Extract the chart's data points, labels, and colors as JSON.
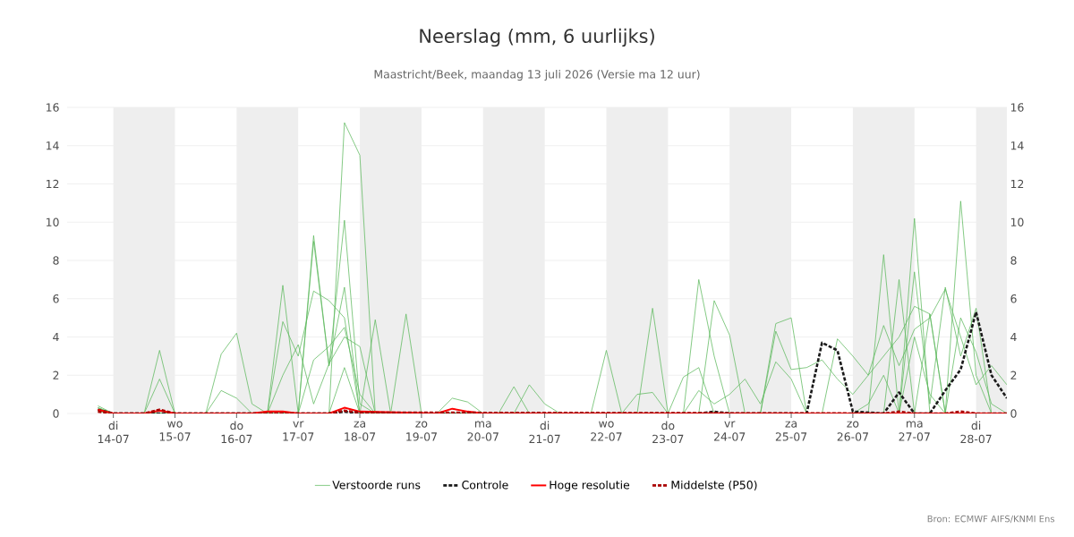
{
  "chart_data": {
    "type": "line",
    "title": "Neerslag (mm, 6 uurlijks)",
    "subtitle": "Maastricht/Beek, maandag 13 juli 2026 (Versie ma 12 uur)",
    "annotations": [
      "Bron: ECMWF AIFS/KNMI Ens"
    ],
    "xlim": [
      "2026-07-13T06:00",
      "2026-07-28T12:00"
    ],
    "xticks": [
      {
        "value": "2026-07-14",
        "label": "di 14-07"
      },
      {
        "value": "2026-07-15",
        "label": "wo 15-07"
      },
      {
        "value": "2026-07-16",
        "label": "do 16-07"
      },
      {
        "value": "2026-07-17",
        "label": "vr 17-07"
      },
      {
        "value": "2026-07-18",
        "label": "za 18-07"
      },
      {
        "value": "2026-07-19",
        "label": "zo 19-07"
      },
      {
        "value": "2026-07-20",
        "label": "ma 20-07"
      },
      {
        "value": "2026-07-21",
        "label": "di 21-07"
      },
      {
        "value": "2026-07-22",
        "label": "wo 22-07"
      },
      {
        "value": "2026-07-23",
        "label": "do 23-07"
      },
      {
        "value": "2026-07-24",
        "label": "vr 24-07"
      },
      {
        "value": "2026-07-25",
        "label": "za 25-07"
      },
      {
        "value": "2026-07-26",
        "label": "zo 26-07"
      },
      {
        "value": "2026-07-27",
        "label": "ma 27-07"
      },
      {
        "value": "2026-07-28",
        "label": "di 28-07"
      }
    ],
    "ylim": [
      0,
      16
    ],
    "yticks": [
      0,
      2,
      4,
      6,
      8,
      10,
      12,
      14,
      16
    ],
    "y2lim": [
      0,
      16
    ],
    "y2ticks": [
      0,
      2,
      4,
      6,
      8,
      10,
      12,
      14,
      16
    ],
    "grid": "y",
    "legend": "bottom",
    "bands": [
      {
        "axis": "x",
        "from": "2026-07-14",
        "to": "2026-07-15",
        "color": "#eeeeee"
      },
      {
        "axis": "x",
        "from": "2026-07-16",
        "to": "2026-07-17",
        "color": "#eeeeee"
      },
      {
        "axis": "x",
        "from": "2026-07-18",
        "to": "2026-07-19",
        "color": "#eeeeee"
      },
      {
        "axis": "x",
        "from": "2026-07-20",
        "to": "2026-07-21",
        "color": "#eeeeee"
      },
      {
        "axis": "x",
        "from": "2026-07-22",
        "to": "2026-07-23",
        "color": "#eeeeee"
      },
      {
        "axis": "x",
        "from": "2026-07-24",
        "to": "2026-07-25",
        "color": "#eeeeee"
      },
      {
        "axis": "x",
        "from": "2026-07-26",
        "to": "2026-07-27",
        "color": "#eeeeee"
      },
      {
        "axis": "x",
        "from": "2026-07-28",
        "to": "2026-07-28T12:00",
        "color": "#eeeeee"
      }
    ],
    "series": [
      {
        "color": "#5cb85c",
        "x": [
          "2026-07-13T18:00",
          "2026-07-14T00:00",
          "2026-07-14T12:00",
          "2026-07-14T18:00",
          "2026-07-15T00:00",
          "2026-07-17T00:00",
          "2026-07-17T06:00",
          "2026-07-17T12:00",
          "2026-07-17T18:00",
          "2026-07-18T00:00",
          "2026-07-18T06:00",
          "2026-07-18T12:00",
          "2026-07-18T18:00",
          "2026-07-19T00:00",
          "2026-07-24T12:00",
          "2026-07-24T18:00",
          "2026-07-25T00:00",
          "2026-07-25T06:00",
          "2026-07-27T12:00",
          "2026-07-27T18:00",
          "2026-07-28T00:00",
          "2026-07-28T06:00",
          "2026-07-28T12:00"
        ],
        "values": [
          0.4,
          0,
          0,
          1.8,
          0,
          0,
          9.3,
          2.5,
          10.1,
          0.5,
          0,
          0,
          5.2,
          0,
          0,
          4.7,
          5.0,
          0,
          0,
          11.1,
          2.0,
          0,
          0
        ]
      },
      {
        "color": "#5cb85c",
        "x": [
          "2026-07-13T18:00",
          "2026-07-14T00:00",
          "2026-07-15T12:00",
          "2026-07-15T18:00",
          "2026-07-16T00:00",
          "2026-07-16T06:00",
          "2026-07-16T12:00",
          "2026-07-16T18:00",
          "2026-07-17T00:00",
          "2026-07-17T06:00",
          "2026-07-17T12:00",
          "2026-07-17T18:00",
          "2026-07-18T00:00",
          "2026-07-21T18:00",
          "2026-07-22T00:00",
          "2026-07-22T06:00",
          "2026-07-26T06:00",
          "2026-07-26T12:00",
          "2026-07-26T18:00",
          "2026-07-27T00:00",
          "2026-07-27T06:00",
          "2026-07-27T12:00",
          "2026-07-27T18:00",
          "2026-07-28T00:00",
          "2026-07-28T06:00",
          "2026-07-28T12:00"
        ],
        "values": [
          0.2,
          0,
          0,
          3.1,
          4.2,
          0.5,
          0,
          6.7,
          0,
          9.0,
          2.5,
          6.6,
          0,
          0,
          3.3,
          0,
          0,
          8.3,
          0,
          7.4,
          0.5,
          6.6,
          3.0,
          5.5,
          0,
          0
        ]
      },
      {
        "color": "#5cb85c",
        "x": [
          "2026-07-13T18:00",
          "2026-07-14T00:00",
          "2026-07-16T12:00",
          "2026-07-16T18:00",
          "2026-07-17T00:00",
          "2026-07-17T06:00",
          "2026-07-17T12:00",
          "2026-07-17T18:00",
          "2026-07-18T00:00",
          "2026-07-18T06:00",
          "2026-07-18T12:00",
          "2026-07-22T12:00",
          "2026-07-22T18:00",
          "2026-07-23T00:00",
          "2026-07-23T12:00",
          "2026-07-23T18:00",
          "2026-07-24T00:00",
          "2026-07-24T06:00",
          "2026-07-26T12:00",
          "2026-07-26T18:00",
          "2026-07-27T00:00",
          "2026-07-27T06:00",
          "2026-07-27T12:00",
          "2026-07-28T12:00"
        ],
        "values": [
          0.3,
          0,
          0,
          4.8,
          3.0,
          6.4,
          5.9,
          5.0,
          0,
          4.9,
          0,
          0,
          5.5,
          0,
          0,
          5.9,
          4.1,
          0,
          0,
          7.0,
          0,
          5.2,
          0,
          0
        ]
      },
      {
        "color": "#5cb85c",
        "x": [
          "2026-07-13T18:00",
          "2026-07-14T00:00",
          "2026-07-16T12:00",
          "2026-07-16T18:00",
          "2026-07-17T00:00",
          "2026-07-17T06:00",
          "2026-07-17T12:00",
          "2026-07-17T18:00",
          "2026-07-18T00:00",
          "2026-07-18T06:00",
          "2026-07-20T06:00",
          "2026-07-20T12:00",
          "2026-07-20T18:00",
          "2026-07-22T06:00",
          "2026-07-22T12:00",
          "2026-07-22T18:00",
          "2026-07-23T00:00",
          "2026-07-23T06:00",
          "2026-07-23T12:00",
          "2026-07-23T18:00",
          "2026-07-25T12:00",
          "2026-07-25T18:00",
          "2026-07-26T00:00",
          "2026-07-26T06:00",
          "2026-07-26T12:00",
          "2026-07-26T18:00",
          "2026-07-27T00:00",
          "2026-07-27T06:00",
          "2026-07-27T12:00",
          "2026-07-28T12:00"
        ],
        "values": [
          0.2,
          0,
          0,
          2.0,
          3.6,
          0.5,
          2.6,
          4.0,
          3.5,
          0,
          0,
          1.4,
          0,
          0,
          1.0,
          1.1,
          0,
          1.9,
          2.4,
          0,
          0,
          3.9,
          3.0,
          2.0,
          3.0,
          4.0,
          5.6,
          5.2,
          0,
          0
        ]
      },
      {
        "color": "#5cb85c",
        "x": [
          "2026-07-13T18:00",
          "2026-07-14T00:00",
          "2026-07-17T00:00",
          "2026-07-17T06:00",
          "2026-07-17T12:00",
          "2026-07-17T18:00",
          "2026-07-18T00:00",
          "2026-07-18T06:00",
          "2026-07-19T06:00",
          "2026-07-19T12:00",
          "2026-07-19T18:00",
          "2026-07-20T00:00",
          "2026-07-20T12:00",
          "2026-07-20T18:00",
          "2026-07-21T00:00",
          "2026-07-21T06:00",
          "2026-07-24T12:00",
          "2026-07-24T18:00",
          "2026-07-25T00:00",
          "2026-07-25T06:00",
          "2026-07-25T12:00",
          "2026-07-25T18:00",
          "2026-07-26T00:00",
          "2026-07-26T06:00",
          "2026-07-26T12:00",
          "2026-07-26T18:00",
          "2026-07-27T00:00",
          "2026-07-27T06:00",
          "2026-07-27T12:00",
          "2026-07-27T18:00",
          "2026-07-28T00:00",
          "2026-07-28T06:00",
          "2026-07-28T12:00"
        ],
        "values": [
          0.1,
          0,
          0,
          2.8,
          3.5,
          4.5,
          1.0,
          0,
          0,
          0.8,
          0.6,
          0,
          0,
          1.5,
          0.5,
          0,
          0,
          4.3,
          2.3,
          2.4,
          2.8,
          1.8,
          1.0,
          2.0,
          4.6,
          2.5,
          4.4,
          5.0,
          6.5,
          4.0,
          1.5,
          2.5,
          1.5
        ]
      },
      {
        "color": "#5cb85c",
        "x": [
          "2026-07-13T18:00",
          "2026-07-14T00:00",
          "2026-07-15T12:00",
          "2026-07-15T18:00",
          "2026-07-16T00:00",
          "2026-07-16T06:00",
          "2026-07-17T12:00",
          "2026-07-17T18:00",
          "2026-07-18T00:00",
          "2026-07-23T06:00",
          "2026-07-23T12:00",
          "2026-07-23T18:00",
          "2026-07-24T00:00",
          "2026-07-24T06:00",
          "2026-07-24T12:00",
          "2026-07-24T18:00",
          "2026-07-25T00:00",
          "2026-07-25T06:00",
          "2026-07-26T00:00",
          "2026-07-26T06:00",
          "2026-07-26T12:00",
          "2026-07-26T18:00",
          "2026-07-27T00:00",
          "2026-07-27T06:00",
          "2026-07-27T12:00",
          "2026-07-27T18:00",
          "2026-07-28T00:00",
          "2026-07-28T06:00",
          "2026-07-28T12:00"
        ],
        "values": [
          0.2,
          0,
          0,
          1.2,
          0.8,
          0,
          0,
          2.4,
          0,
          0,
          1.2,
          0.5,
          1.0,
          1.8,
          0.5,
          2.7,
          1.8,
          0,
          0,
          0.5,
          2.0,
          0,
          4.0,
          1.0,
          0,
          5.0,
          3.2,
          0.5,
          0
        ]
      },
      {
        "name": "Verstoorde runs",
        "color": "#5cb85c",
        "x": [
          "2026-07-13T18:00",
          "2026-07-14T00:00",
          "2026-07-14T12:00",
          "2026-07-14T18:00",
          "2026-07-15T00:00",
          "2026-07-17T12:00",
          "2026-07-17T18:00",
          "2026-07-18T00:00",
          "2026-07-18T06:00",
          "2026-07-23T06:00",
          "2026-07-23T12:00",
          "2026-07-23T18:00",
          "2026-07-24T00:00",
          "2026-07-26T18:00",
          "2026-07-27T00:00",
          "2026-07-27T06:00",
          "2026-07-28T12:00"
        ],
        "values": [
          0.3,
          0,
          0,
          3.3,
          0,
          0,
          15.2,
          13.5,
          0,
          0,
          7.0,
          3.0,
          0,
          0,
          10.2,
          0,
          0
        ]
      },
      {
        "name": "Controle",
        "color": "#1a1a1a",
        "line_style": "dashed",
        "x": [
          "2026-07-13T18:00",
          "2026-07-14T00:00",
          "2026-07-17T12:00",
          "2026-07-17T18:00",
          "2026-07-18T00:00",
          "2026-07-23T12:00",
          "2026-07-23T18:00",
          "2026-07-24T00:00",
          "2026-07-25T06:00",
          "2026-07-25T12:00",
          "2026-07-25T18:00",
          "2026-07-26T00:00",
          "2026-07-26T12:00",
          "2026-07-26T18:00",
          "2026-07-27T00:00",
          "2026-07-27T06:00",
          "2026-07-27T12:00",
          "2026-07-27T18:00",
          "2026-07-28T00:00",
          "2026-07-28T06:00",
          "2026-07-28T12:00"
        ],
        "values": [
          0.2,
          0,
          0,
          0.1,
          0,
          0,
          0.1,
          0,
          0,
          3.7,
          3.3,
          0.1,
          0,
          1.1,
          0,
          0,
          1.2,
          2.3,
          5.3,
          2.0,
          0.8
        ]
      },
      {
        "name": "Hoge resolutie",
        "color": "#ff0000",
        "x": [
          "2026-07-13T18:00",
          "2026-07-14T00:00",
          "2026-07-14T12:00",
          "2026-07-14T18:00",
          "2026-07-15T00:00",
          "2026-07-16T06:00",
          "2026-07-16T12:00",
          "2026-07-16T18:00",
          "2026-07-17T00:00",
          "2026-07-17T12:00",
          "2026-07-17T18:00",
          "2026-07-18T00:00",
          "2026-07-19T06:00",
          "2026-07-19T12:00",
          "2026-07-19T18:00",
          "2026-07-20T00:00",
          "2026-07-28T12:00"
        ],
        "values": [
          0.2,
          0,
          0,
          0.15,
          0,
          0,
          0.1,
          0.1,
          0,
          0,
          0.3,
          0.1,
          0,
          0.25,
          0.1,
          0,
          0
        ]
      },
      {
        "name": "Middelste (P50)",
        "color": "#aa0000",
        "line_style": "dashed",
        "x": [
          "2026-07-13T18:00",
          "2026-07-14T00:00",
          "2026-07-14T12:00",
          "2026-07-14T18:00",
          "2026-07-15T00:00",
          "2026-07-17T12:00",
          "2026-07-17T18:00",
          "2026-07-18T00:00",
          "2026-07-26T12:00",
          "2026-07-26T18:00",
          "2026-07-27T00:00",
          "2026-07-27T12:00",
          "2026-07-27T18:00",
          "2026-07-28T00:00",
          "2026-07-28T12:00"
        ],
        "values": [
          0.1,
          0,
          0,
          0.2,
          0,
          0,
          0.15,
          0.05,
          0,
          0.1,
          0,
          0,
          0.1,
          0,
          0
        ]
      }
    ]
  }
}
